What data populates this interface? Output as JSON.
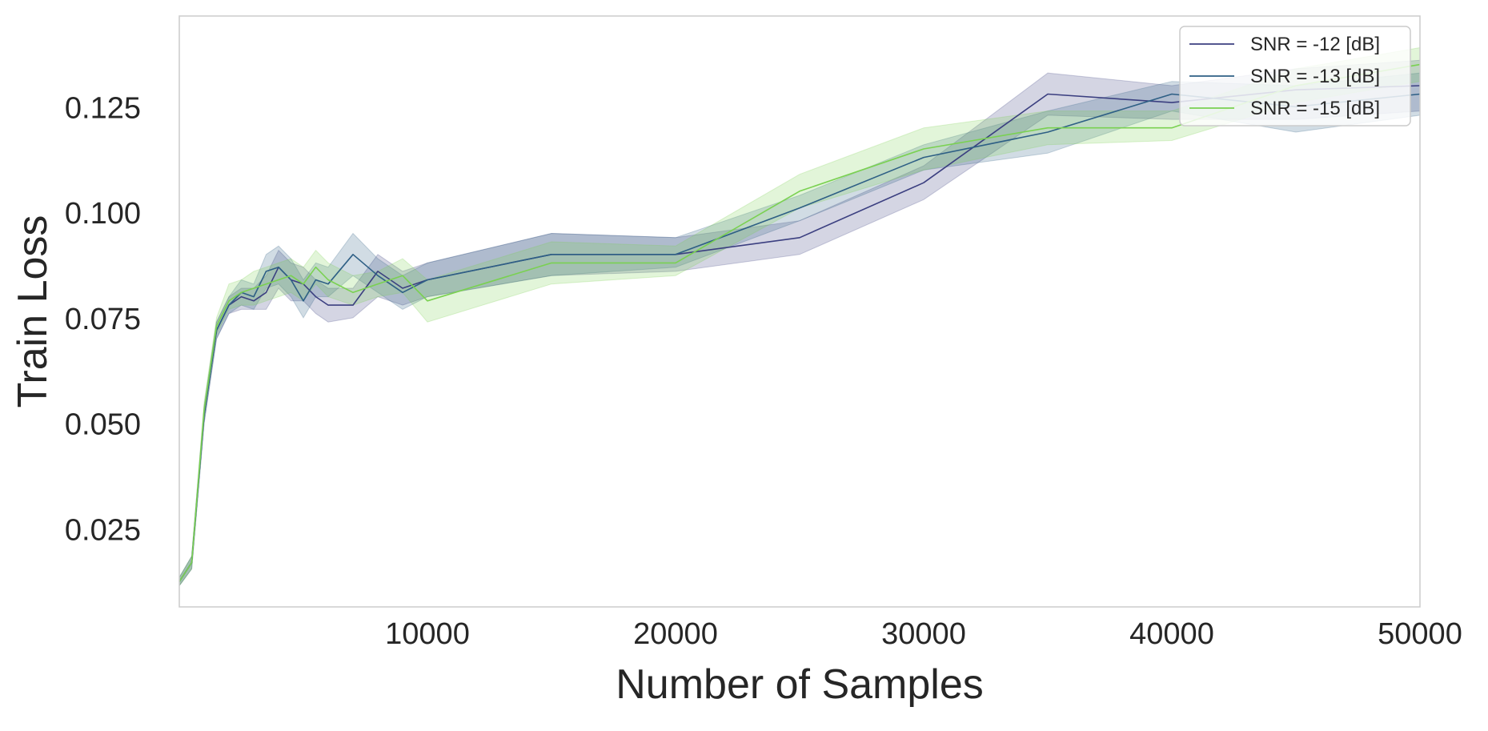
{
  "chart_data": {
    "type": "line",
    "xlabel": "Number of Samples",
    "ylabel": "Train Loss",
    "xlim": [
      0,
      50000
    ],
    "ylim": [
      0.0065,
      0.1465
    ],
    "xticks": [
      10000,
      20000,
      30000,
      40000,
      50000
    ],
    "yticks": [
      0.025,
      0.05,
      0.075,
      0.1,
      0.125
    ],
    "xtick_labels": [
      "10000",
      "20000",
      "30000",
      "40000",
      "50000"
    ],
    "ytick_labels": [
      "0.025",
      "0.050",
      "0.075",
      "0.100",
      "0.125"
    ],
    "grid": false,
    "legend_position": "upper right",
    "x": [
      0,
      500,
      1000,
      1500,
      2000,
      2500,
      3000,
      3500,
      4000,
      4500,
      5000,
      5500,
      6000,
      7000,
      8000,
      9000,
      10000,
      15000,
      20000,
      25000,
      30000,
      35000,
      40000,
      45000,
      50000
    ],
    "series": [
      {
        "name": "SNR = -12 [dB]",
        "color": "#3b3f80",
        "values": [
          0.0125,
          0.017,
          0.052,
          0.072,
          0.078,
          0.08,
          0.079,
          0.081,
          0.087,
          0.084,
          0.083,
          0.08,
          0.078,
          0.078,
          0.086,
          0.082,
          0.084,
          0.09,
          0.09,
          0.094,
          0.107,
          0.128,
          0.126,
          0.129,
          0.13
        ],
        "lower": [
          0.0115,
          0.0155,
          0.05,
          0.07,
          0.076,
          0.077,
          0.077,
          0.077,
          0.082,
          0.079,
          0.079,
          0.076,
          0.074,
          0.075,
          0.08,
          0.078,
          0.08,
          0.085,
          0.086,
          0.09,
          0.103,
          0.123,
          0.122,
          0.122,
          0.124
        ],
        "upper": [
          0.0135,
          0.0185,
          0.054,
          0.074,
          0.08,
          0.082,
          0.082,
          0.085,
          0.091,
          0.088,
          0.087,
          0.084,
          0.082,
          0.082,
          0.09,
          0.086,
          0.088,
          0.095,
          0.094,
          0.098,
          0.111,
          0.133,
          0.13,
          0.134,
          0.136
        ]
      },
      {
        "name": "SNR = -13 [dB]",
        "color": "#2e5f85",
        "values": [
          0.0125,
          0.017,
          0.052,
          0.072,
          0.078,
          0.081,
          0.08,
          0.086,
          0.087,
          0.084,
          0.079,
          0.084,
          0.083,
          0.09,
          0.085,
          0.081,
          0.084,
          0.09,
          0.09,
          0.101,
          0.113,
          0.119,
          0.128,
          0.125,
          0.128
        ],
        "lower": [
          0.0115,
          0.0155,
          0.05,
          0.07,
          0.076,
          0.078,
          0.077,
          0.082,
          0.083,
          0.08,
          0.075,
          0.08,
          0.08,
          0.085,
          0.081,
          0.077,
          0.08,
          0.085,
          0.087,
          0.098,
          0.11,
          0.114,
          0.124,
          0.119,
          0.123
        ],
        "upper": [
          0.0135,
          0.0185,
          0.054,
          0.074,
          0.08,
          0.084,
          0.083,
          0.09,
          0.092,
          0.089,
          0.084,
          0.088,
          0.087,
          0.095,
          0.089,
          0.085,
          0.088,
          0.095,
          0.094,
          0.104,
          0.116,
          0.124,
          0.131,
          0.13,
          0.133
        ]
      },
      {
        "name": "SNR = -15 [dB]",
        "color": "#7ad151",
        "values": [
          0.0125,
          0.017,
          0.053,
          0.073,
          0.079,
          0.081,
          0.082,
          0.083,
          0.084,
          0.085,
          0.083,
          0.087,
          0.084,
          0.081,
          0.083,
          0.085,
          0.079,
          0.088,
          0.088,
          0.105,
          0.115,
          0.12,
          0.12,
          0.13,
          0.135
        ],
        "lower": [
          0.0115,
          0.0155,
          0.051,
          0.071,
          0.077,
          0.078,
          0.078,
          0.079,
          0.08,
          0.081,
          0.079,
          0.083,
          0.08,
          0.078,
          0.08,
          0.081,
          0.074,
          0.083,
          0.085,
          0.101,
          0.11,
          0.116,
          0.117,
          0.126,
          0.131
        ],
        "upper": [
          0.0135,
          0.0185,
          0.055,
          0.075,
          0.083,
          0.084,
          0.086,
          0.087,
          0.088,
          0.089,
          0.087,
          0.091,
          0.088,
          0.085,
          0.086,
          0.089,
          0.084,
          0.093,
          0.092,
          0.109,
          0.12,
          0.124,
          0.124,
          0.134,
          0.139
        ]
      }
    ]
  }
}
